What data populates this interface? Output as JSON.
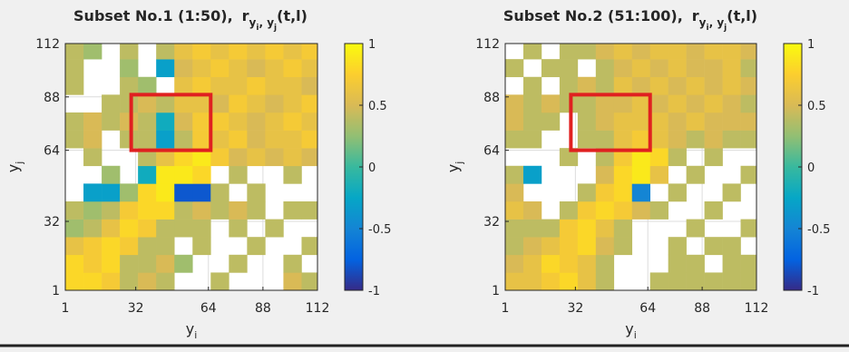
{
  "chart_data": [
    {
      "type": "heatmap",
      "title": "Subset No.1 (1:50),",
      "formula": {
        "base": "r",
        "sub": "y",
        "subsub": "i",
        "sep": ", y",
        "subsub2": "j",
        "args": "(t,l)"
      },
      "xlabel": {
        "base": "y",
        "sub": "i"
      },
      "ylabel": {
        "base": "y",
        "sub": "j"
      },
      "xlim": [
        1,
        112
      ],
      "ylim": [
        1,
        112
      ],
      "xticks": [
        1,
        32,
        64,
        88,
        112
      ],
      "yticks": [
        1,
        32,
        64,
        88,
        112
      ],
      "x_bins": [
        1,
        9,
        17,
        25,
        33,
        41,
        49,
        57,
        65,
        73,
        81,
        89,
        97,
        105,
        112
      ],
      "y_bins": [
        1,
        9,
        17,
        25,
        33,
        41,
        49,
        57,
        65,
        73,
        81,
        89,
        97,
        105,
        112
      ],
      "values": [
        [
          0.8,
          0.8,
          0.7,
          0.4,
          0.5,
          0.4,
          null,
          null,
          0.4,
          null,
          null,
          null,
          0.5,
          0.4
        ],
        [
          0.8,
          0.7,
          0.8,
          0.4,
          0.4,
          0.5,
          0.3,
          null,
          null,
          0.4,
          null,
          null,
          0.4,
          null
        ],
        [
          0.6,
          0.7,
          0.8,
          0.7,
          0.4,
          0.4,
          null,
          0.4,
          null,
          null,
          0.4,
          null,
          null,
          0.4
        ],
        [
          0.3,
          0.4,
          0.6,
          0.8,
          0.7,
          0.4,
          0.4,
          0.4,
          null,
          0.4,
          null,
          0.4,
          null,
          null
        ],
        [
          0.4,
          0.3,
          0.4,
          0.7,
          0.8,
          0.8,
          0.4,
          0.5,
          0.4,
          0.5,
          0.4,
          null,
          0.4,
          0.4
        ],
        [
          null,
          -0.3,
          -0.3,
          0.3,
          0.8,
          0.9,
          -0.8,
          -0.8,
          0.4,
          null,
          0.4,
          null,
          null,
          null
        ],
        [
          null,
          null,
          0.3,
          null,
          -0.2,
          0.9,
          0.9,
          0.8,
          null,
          0.4,
          null,
          null,
          0.4,
          null
        ],
        [
          null,
          0.4,
          null,
          null,
          0.4,
          0.6,
          0.8,
          0.9,
          0.7,
          0.5,
          0.6,
          0.5,
          0.6,
          0.5
        ],
        [
          0.4,
          0.5,
          null,
          0.4,
          0.4,
          -0.3,
          0.4,
          0.7,
          0.6,
          0.7,
          0.5,
          0.6,
          0.6,
          0.7
        ],
        [
          0.4,
          0.5,
          0.4,
          0.5,
          0.4,
          -0.2,
          0.5,
          0.7,
          0.7,
          0.6,
          0.5,
          0.6,
          0.7,
          0.6
        ],
        [
          null,
          null,
          0.4,
          0.4,
          0.5,
          0.4,
          0.6,
          0.6,
          0.5,
          0.7,
          0.6,
          0.5,
          0.6,
          0.7
        ],
        [
          0.4,
          null,
          null,
          0.4,
          0.3,
          null,
          0.6,
          0.7,
          0.6,
          0.6,
          0.7,
          0.6,
          0.6,
          0.5
        ],
        [
          0.4,
          null,
          null,
          0.3,
          null,
          -0.3,
          0.5,
          0.6,
          0.7,
          0.6,
          0.5,
          0.6,
          0.7,
          0.6
        ],
        [
          0.4,
          0.3,
          null,
          0.4,
          null,
          0.4,
          0.6,
          0.7,
          0.6,
          0.7,
          0.6,
          0.7,
          0.6,
          0.7
        ]
      ],
      "clim": [
        -1,
        1
      ],
      "colorbar_ticks": [
        -1,
        -0.5,
        0,
        0.5,
        1
      ],
      "colormap": [
        "#352a87",
        "#0363e1",
        "#1485d4",
        "#06a7c6",
        "#38b99e",
        "#92bf73",
        "#d9ba56",
        "#fcce2e",
        "#f9fb0e"
      ],
      "grid": true,
      "highlight": {
        "x": [
          30,
          65
        ],
        "y": [
          64,
          89
        ],
        "color": "#e02020"
      }
    },
    {
      "type": "heatmap",
      "title": "Subset No.2 (51:100),",
      "formula": {
        "base": "r",
        "sub": "y",
        "subsub": "i",
        "sep": ", y",
        "subsub2": "j",
        "args": "(t,l)"
      },
      "xlabel": {
        "base": "y",
        "sub": "i"
      },
      "ylabel": {
        "base": "y",
        "sub": "j"
      },
      "xlim": [
        1,
        112
      ],
      "ylim": [
        1,
        112
      ],
      "xticks": [
        1,
        32,
        64,
        88,
        112
      ],
      "yticks": [
        1,
        32,
        64,
        88,
        112
      ],
      "x_bins": [
        1,
        9,
        17,
        25,
        33,
        41,
        49,
        57,
        65,
        73,
        81,
        89,
        97,
        105,
        112
      ],
      "y_bins": [
        1,
        9,
        17,
        25,
        33,
        41,
        49,
        57,
        65,
        73,
        81,
        89,
        97,
        105,
        112
      ],
      "values": [
        [
          0.6,
          0.6,
          0.7,
          0.8,
          0.6,
          0.4,
          null,
          null,
          0.4,
          0.4,
          0.4,
          0.4,
          0.4,
          0.4
        ],
        [
          0.5,
          0.6,
          0.8,
          0.7,
          0.6,
          0.4,
          null,
          null,
          null,
          0.4,
          0.4,
          null,
          0.4,
          0.4
        ],
        [
          0.4,
          0.5,
          0.6,
          0.7,
          0.8,
          0.5,
          0.4,
          null,
          null,
          0.4,
          null,
          0.4,
          0.4,
          null
        ],
        [
          0.4,
          0.4,
          0.4,
          0.7,
          0.8,
          0.6,
          0.4,
          null,
          null,
          null,
          0.4,
          null,
          null,
          0.4
        ],
        [
          0.6,
          0.5,
          null,
          0.4,
          0.7,
          0.8,
          0.7,
          0.5,
          0.4,
          null,
          null,
          0.4,
          null,
          null
        ],
        [
          0.5,
          null,
          null,
          null,
          0.4,
          0.7,
          0.8,
          -0.5,
          null,
          0.4,
          null,
          null,
          0.4,
          null
        ],
        [
          0.4,
          -0.3,
          null,
          null,
          null,
          0.5,
          0.8,
          0.9,
          0.6,
          null,
          0.4,
          null,
          null,
          0.4
        ],
        [
          null,
          null,
          null,
          0.4,
          null,
          0.4,
          0.7,
          0.9,
          0.8,
          0.4,
          null,
          0.4,
          null,
          null
        ],
        [
          0.4,
          0.4,
          null,
          null,
          0.4,
          0.4,
          0.6,
          0.7,
          0.6,
          0.5,
          0.4,
          0.5,
          0.4,
          0.4
        ],
        [
          0.5,
          0.4,
          0.4,
          null,
          0.4,
          0.5,
          0.6,
          0.6,
          0.6,
          0.5,
          0.6,
          0.5,
          0.5,
          0.5
        ],
        [
          0.5,
          0.4,
          0.5,
          0.4,
          0.4,
          0.5,
          0.5,
          0.6,
          0.5,
          0.6,
          0.5,
          0.6,
          0.5,
          0.4
        ],
        [
          null,
          0.4,
          null,
          0.4,
          0.5,
          0.4,
          0.6,
          0.5,
          0.6,
          0.5,
          0.6,
          0.5,
          0.6,
          0.5
        ],
        [
          0.4,
          null,
          0.4,
          0.4,
          null,
          0.4,
          0.5,
          0.6,
          0.5,
          0.6,
          0.5,
          0.5,
          0.6,
          0.4
        ],
        [
          null,
          0.4,
          null,
          0.4,
          0.4,
          0.5,
          0.6,
          0.5,
          0.6,
          0.6,
          0.5,
          0.6,
          0.6,
          0.5
        ]
      ],
      "clim": [
        -1,
        1
      ],
      "colorbar_ticks": [
        -1,
        -0.5,
        0,
        0.5,
        1
      ],
      "colormap": [
        "#352a87",
        "#0363e1",
        "#1485d4",
        "#06a7c6",
        "#38b99e",
        "#92bf73",
        "#d9ba56",
        "#fcce2e",
        "#f9fb0e"
      ],
      "grid": true,
      "highlight": {
        "x": [
          30,
          65
        ],
        "y": [
          64,
          89
        ],
        "color": "#e02020"
      }
    }
  ]
}
